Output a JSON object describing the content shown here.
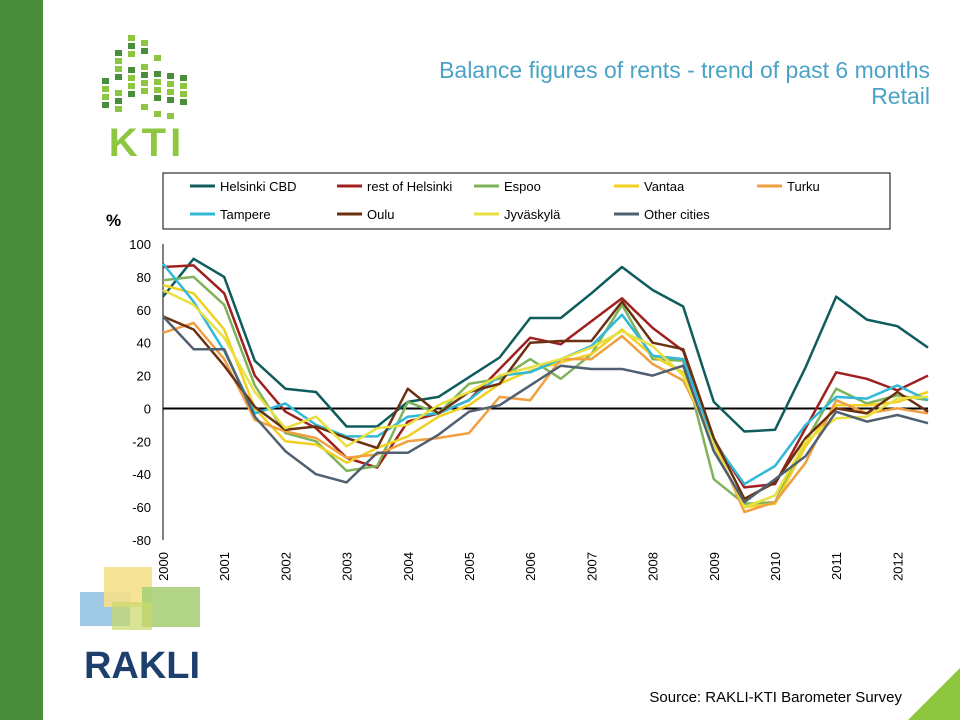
{
  "header": {
    "title_line1": "Balance figures of rents - trend of past 6 months",
    "title_line2": "Retail",
    "title_color": "#4aa3c6"
  },
  "footer": {
    "source": "Source: RAKLI-KTI Barometer Survey"
  },
  "brand": {
    "kti_text": "KTI",
    "rakli_text": "RAKLI",
    "green": "#8dc63f",
    "dark_green": "#4a8d3a",
    "navy": "#1c3f6e"
  },
  "chart_data": {
    "type": "line",
    "ylabel": "%",
    "ylim": [
      -80,
      100
    ],
    "yticks": [
      100,
      80,
      60,
      40,
      20,
      0,
      -20,
      -40,
      -60,
      -80
    ],
    "xlim": [
      2000,
      2012.5
    ],
    "xticks": [
      "2000",
      "2001",
      "2002",
      "2003",
      "2004",
      "2005",
      "2006",
      "2007",
      "2008",
      "2009",
      "2010",
      "2011",
      "2012"
    ],
    "grid": false,
    "legend_position": "top",
    "x": [
      2000,
      2000.5,
      2001,
      2001.5,
      2002,
      2002.5,
      2003,
      2003.5,
      2004,
      2004.5,
      2005,
      2005.5,
      2006,
      2006.5,
      2007,
      2007.5,
      2008,
      2008.5,
      2009,
      2009.5,
      2010,
      2010.5,
      2011,
      2011.5,
      2012,
      2012.5
    ],
    "series": [
      {
        "name": "Helsinki CBD",
        "color": "#0f5c5c",
        "values": [
          68,
          91,
          80,
          29,
          12,
          10,
          -11,
          -11,
          4,
          7,
          19,
          31,
          55,
          55,
          70,
          86,
          72,
          62,
          4,
          -14,
          -13,
          25,
          68,
          54,
          50,
          37
        ]
      },
      {
        "name": "rest of Helsinki",
        "color": "#a02020",
        "values": [
          86,
          87,
          70,
          20,
          -2,
          -12,
          -30,
          -36,
          -8,
          -3,
          5,
          24,
          43,
          39,
          53,
          67,
          49,
          35,
          -19,
          -48,
          -46,
          -12,
          22,
          18,
          11,
          20
        ]
      },
      {
        "name": "Espoo",
        "color": "#7fb35a",
        "values": [
          78,
          80,
          63,
          14,
          -15,
          -20,
          -38,
          -35,
          4,
          -3,
          15,
          18,
          30,
          18,
          33,
          63,
          30,
          29,
          -43,
          -58,
          -57,
          -20,
          12,
          3,
          8,
          5
        ]
      },
      {
        "name": "Vantaa",
        "color": "#f0d020",
        "values": [
          75,
          70,
          48,
          0,
          -20,
          -22,
          -33,
          -24,
          -17,
          -5,
          2,
          15,
          23,
          28,
          33,
          48,
          32,
          22,
          -22,
          -60,
          -58,
          -23,
          2,
          2,
          4,
          10
        ]
      },
      {
        "name": "Turku",
        "color": "#f0a040",
        "values": [
          46,
          52,
          30,
          -7,
          -14,
          -18,
          -30,
          -28,
          -20,
          -18,
          -15,
          7,
          5,
          30,
          30,
          44,
          27,
          17,
          -20,
          -63,
          -57,
          -33,
          5,
          -3,
          0,
          -3
        ]
      },
      {
        "name": "Tampere",
        "color": "#30b8d8",
        "values": [
          88,
          65,
          35,
          -3,
          3,
          -10,
          -17,
          -17,
          -5,
          -3,
          5,
          20,
          22,
          30,
          38,
          57,
          32,
          30,
          -20,
          -46,
          -35,
          -10,
          7,
          6,
          14,
          5
        ]
      },
      {
        "name": "Oulu",
        "color": "#6b3010",
        "values": [
          56,
          48,
          26,
          1,
          -13,
          -11,
          -18,
          -24,
          12,
          -3,
          10,
          15,
          40,
          41,
          41,
          65,
          40,
          36,
          -18,
          -55,
          -45,
          -18,
          0,
          -3,
          10,
          -2
        ]
      },
      {
        "name": "Jyväskylä",
        "color": "#e8e040",
        "values": [
          72,
          63,
          43,
          10,
          -12,
          -5,
          -23,
          -12,
          -10,
          2,
          10,
          20,
          25,
          30,
          37,
          47,
          38,
          20,
          -22,
          -60,
          -53,
          -20,
          -6,
          -5,
          6,
          7
        ]
      },
      {
        "name": "Other cities",
        "color": "#506070",
        "values": [
          56,
          36,
          36,
          -5,
          -26,
          -40,
          -45,
          -27,
          -27,
          -16,
          -2,
          2,
          14,
          26,
          24,
          24,
          20,
          26,
          -26,
          -57,
          -43,
          -29,
          -2,
          -8,
          -4,
          -9
        ]
      }
    ]
  }
}
